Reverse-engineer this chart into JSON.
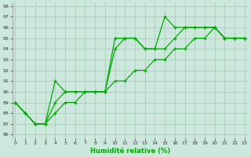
{
  "xlabel": "Humidité relative (%)",
  "bg_color": "#cce8dd",
  "grid_color": "#aaccbb",
  "line_color": "#00aa00",
  "xlim": [
    0,
    23
  ],
  "ylim": [
    86,
    98
  ],
  "yticks": [
    86,
    87,
    88,
    89,
    90,
    91,
    92,
    93,
    94,
    95,
    96,
    97,
    98
  ],
  "xticks": [
    0,
    1,
    2,
    3,
    4,
    5,
    6,
    7,
    8,
    9,
    10,
    11,
    12,
    13,
    14,
    15,
    16,
    17,
    18,
    19,
    20,
    21,
    22,
    23
  ],
  "series1": [
    89,
    88,
    87,
    87,
    91,
    90,
    90,
    90,
    90,
    90,
    95,
    95,
    95,
    94,
    94,
    97,
    96,
    96,
    96,
    96,
    96,
    95,
    95,
    95
  ],
  "series2": [
    89,
    88,
    87,
    87,
    89,
    90,
    90,
    90,
    90,
    90,
    94,
    95,
    95,
    94,
    94,
    94,
    95,
    96,
    96,
    96,
    96,
    95,
    95,
    95
  ],
  "series3": [
    89,
    88,
    87,
    87,
    88,
    89,
    89,
    90,
    90,
    90,
    91,
    91,
    92,
    92,
    93,
    93,
    94,
    94,
    95,
    95,
    96,
    95,
    95,
    95
  ]
}
